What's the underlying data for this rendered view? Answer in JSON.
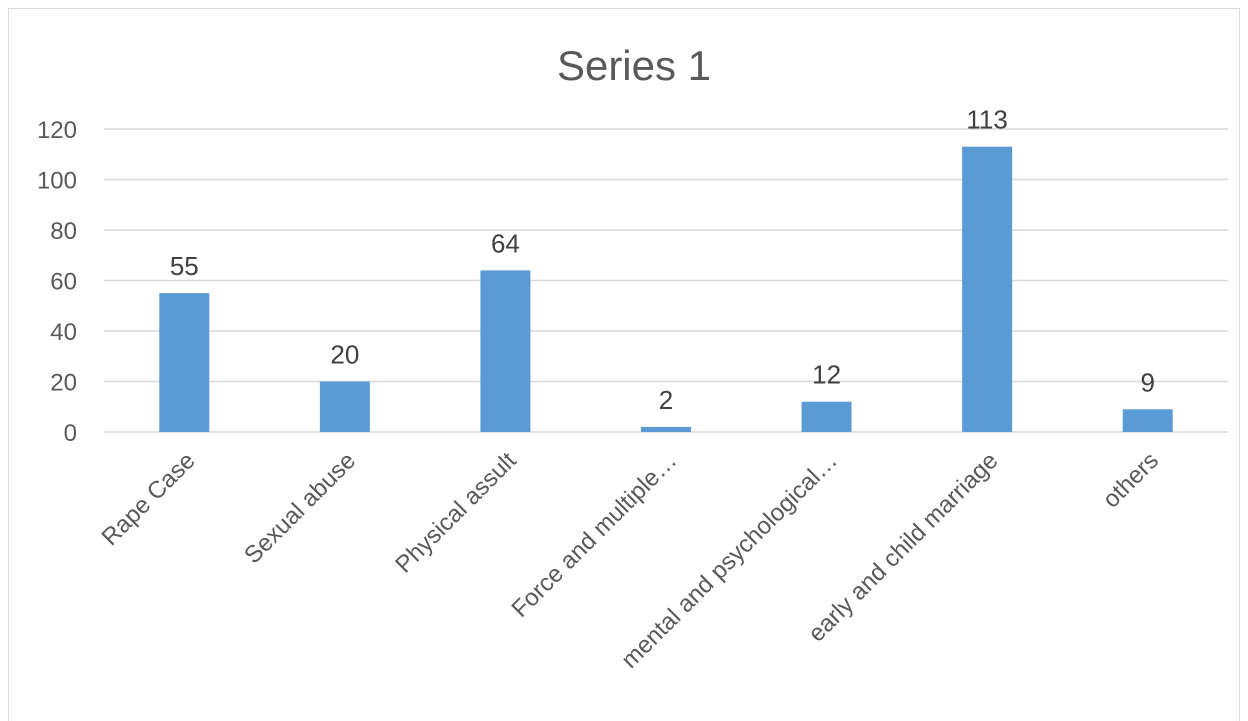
{
  "chart_data": {
    "type": "bar",
    "title": "Series 1",
    "categories": [
      "Rape Case",
      "Sexual abuse",
      "Physical assult",
      "Force and multiple…",
      "mental and psychological…",
      "early and child marriage",
      "others"
    ],
    "series": [
      {
        "values": [
          55,
          20,
          64,
          2,
          12,
          113,
          9
        ]
      }
    ],
    "ylim": [
      0,
      120
    ],
    "yticks": [
      0,
      20,
      40,
      60,
      80,
      100,
      120
    ],
    "grid": true,
    "legend": "none",
    "data_labels": true,
    "colors": {
      "bar": "#5b9bd5",
      "grid": "#d9d9d9",
      "text": "#595959"
    }
  }
}
